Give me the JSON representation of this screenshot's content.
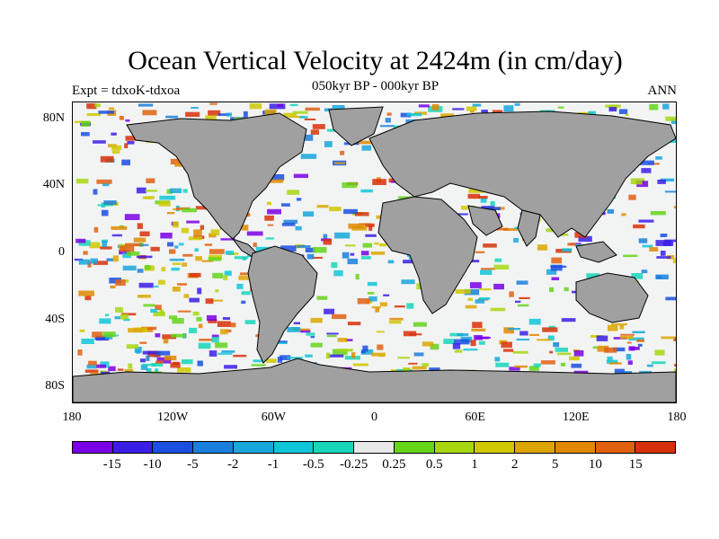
{
  "title": "Ocean Vertical Velocity at 2424m (in cm/day)",
  "subtitle": "050kyr BP - 000kyr BP",
  "left_label": "Expt = tdxoK-tdxoa",
  "right_label": "ANN",
  "map": {
    "land_color": "#a0a0a0",
    "lon_range": [
      -180,
      180
    ],
    "lat_range": [
      -90,
      90
    ],
    "lat_ticks": [
      {
        "label": "80N",
        "lat": 80
      },
      {
        "label": "40N",
        "lat": 40
      },
      {
        "label": "0",
        "lat": 0
      },
      {
        "label": "40S",
        "lat": -40
      },
      {
        "label": "80S",
        "lat": -80
      }
    ],
    "lon_ticks": [
      {
        "label": "180",
        "lon": -180
      },
      {
        "label": "120W",
        "lon": -120
      },
      {
        "label": "60W",
        "lon": -60
      },
      {
        "label": "0",
        "lon": 0
      },
      {
        "label": "60E",
        "lon": 60
      },
      {
        "label": "120E",
        "lon": 120
      },
      {
        "label": "180",
        "lon": 180
      }
    ]
  },
  "colorbar": {
    "colors": [
      "#7a00e6",
      "#3a1ee6",
      "#1a4fe0",
      "#1a7fdc",
      "#18a6dc",
      "#10c6d8",
      "#18d6b8",
      "#e8e8e8",
      "#66d41a",
      "#a8d610",
      "#d0c800",
      "#dca600",
      "#e08800",
      "#e06010",
      "#d83008"
    ],
    "labels": [
      "-15",
      "-10",
      "-5",
      "-2",
      "-1",
      "-0.5",
      "-0.25",
      "0.25",
      "0.5",
      "1",
      "2",
      "5",
      "10",
      "15"
    ]
  }
}
